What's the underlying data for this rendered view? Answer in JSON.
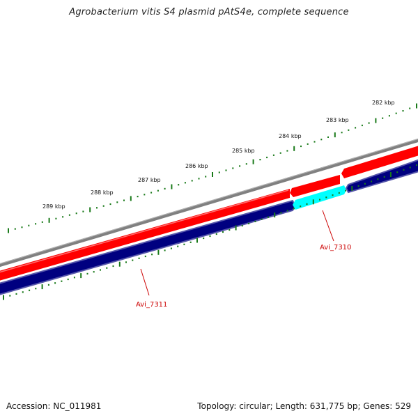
{
  "title": "Agrobacterium vitis S4 plasmid pAtS4e, complete sequence",
  "footer": {
    "accession": "Accession: NC_011981",
    "summary": "Topology: circular; Length: 631,775 bp; Genes: 529"
  },
  "scale_labels": [
    "282 kbp",
    "283 kbp",
    "284 kbp",
    "285 kbp",
    "286 kbp",
    "287 kbp",
    "288 kbp",
    "289 kbp"
  ],
  "gene_labels": [
    "Avi_7310",
    "Avi_7311"
  ],
  "colors": {
    "backbone": "#808080",
    "forward_gene": "#ff0000",
    "reverse_gene": "#000080",
    "reverse_outline": "#5555aa",
    "highlight_gene": "#00ffff",
    "ticks": "#1a7a1a",
    "label": "#cc0000"
  }
}
